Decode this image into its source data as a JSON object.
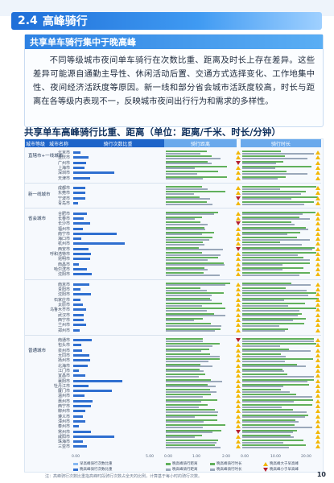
{
  "section": {
    "number": "2.4",
    "title": "高峰骑行"
  },
  "box": {
    "title": "共享单车骑行集中于晚高峰",
    "body": "不同等级城市夜间单车骑行在次数比重、距离及时长上存在差异。这些差异可能源自通勤主导性、休闲活动后置、交通方式选择变化、工作地集中性、夜间经济活跃度等原因。新一线和部分省会城市活跃度较高，时长与距离在各等级内表现不一，反映城市夜间出行行为和需求的多样性。"
  },
  "chart": {
    "heading": "共享单车高峰骑行比重、距离（单位：距离/千米、时长/分钟）",
    "headers": {
      "level": "城市等级",
      "name": "城市名称",
      "share": "骑行次数比重",
      "distance": "骑行距离",
      "duration": "骑行时长"
    },
    "groups": [
      {
        "label": "直辖市+一线城市"
      },
      {
        "label": "新一线城市"
      },
      {
        "label": "省会城市"
      },
      {
        "label": "普通城市"
      }
    ],
    "cities": [
      "北京市",
      "重庆市",
      "广州市",
      "上海市",
      "深圳市",
      "天津市",
      "",
      "成都市",
      "东莞市",
      "宁波市",
      "青岛市",
      "",
      "合肥市",
      "长春市",
      "长沙市",
      "福州市",
      "南宁市",
      "海口市",
      "杭州市",
      "西安市",
      "呼和浩特市",
      "昆明市",
      "南昌市",
      "哈尔滨市",
      "沈阳市",
      "",
      "南京市",
      "贵阳市",
      "沈阳市",
      "石家庄市",
      "太原市",
      "乌鲁木齐市",
      "武汉市",
      "西宁市",
      "兰州市",
      "郑州市",
      "",
      "南通市",
      "包头市",
      "泉州市",
      "大同市",
      "扬州市",
      "北海市",
      "江门市",
      "宜昌市",
      "襄阳市",
      "牡丹江市",
      "厦门市",
      "温州市",
      "惠州市",
      "西宁市",
      "柳州市",
      "遵义市",
      "漳州市",
      "泰州市",
      "常州市",
      "咸阳市",
      "珠海市",
      "三亚市"
    ],
    "axis": {
      "share": [
        "0.00",
        "5.00"
      ],
      "distance": [
        "0.00",
        "1.00",
        "2.00"
      ],
      "duration": [
        "0.00",
        "10.00",
        "20.00"
      ]
    },
    "legend": {
      "share": [
        "早高峰骑行次数比重",
        "晚高峰骑行次数比重"
      ],
      "distance": [
        "晚高峰骑行距离",
        "晚高峰骑行距离"
      ],
      "duration": [
        "晚高峰骑行时长",
        "晚高峰骑行时长",
        "晚高峰大于早高峰",
        "晚高峰小于早高峰"
      ]
    },
    "footnote": "注：高峰骑行次数比重指高峰时段骑行次数占全天的比例，计算基于每小时的骑行次数。"
  },
  "page_number": "10"
}
